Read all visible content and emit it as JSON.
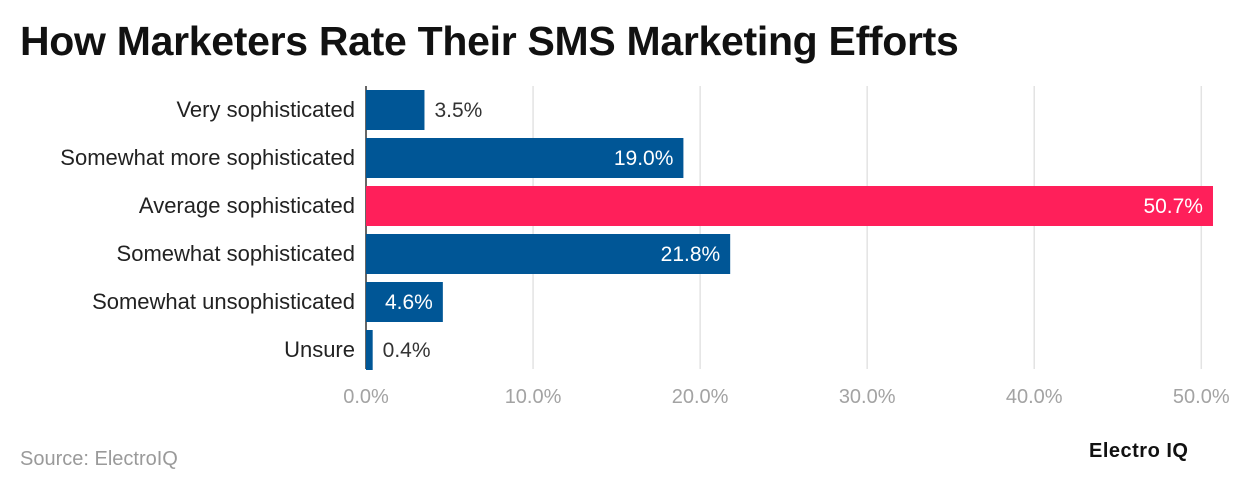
{
  "title": "How Marketers Rate Their SMS Marketing Efforts",
  "source": "Source: ElectroIQ",
  "brand": "Electro IQ",
  "colors": {
    "bar_default": "#005696",
    "bar_highlight": "#ff1f5a",
    "grid": "#e3e3e3",
    "tick_label": "#a3a3a3",
    "category_label": "#222222",
    "value_label_dark": "#333333",
    "value_label_light": "#ffffff"
  },
  "chart_data": {
    "type": "bar",
    "orientation": "horizontal",
    "title": "How Marketers Rate Their SMS Marketing Efforts",
    "categories": [
      "Very sophisticated",
      "Somewhat more sophisticated",
      "Average sophisticated",
      "Somewhat sophisticated",
      "Somewhat unsophisticated",
      "Unsure"
    ],
    "values": [
      3.5,
      19.0,
      50.7,
      21.8,
      4.6,
      0.4
    ],
    "value_labels": [
      "3.5%",
      "19.0%",
      "50.7%",
      "21.8%",
      "4.6%",
      "0.4%"
    ],
    "highlight_index": 2,
    "xlim": [
      0,
      51
    ],
    "xticks": [
      0,
      10,
      20,
      30,
      40,
      50
    ],
    "xtick_labels": [
      "0.0%",
      "10.0%",
      "20.0%",
      "30.0%",
      "40.0%",
      "50.0%"
    ],
    "grid": true,
    "legend": "none",
    "xlabel": "",
    "ylabel": ""
  }
}
